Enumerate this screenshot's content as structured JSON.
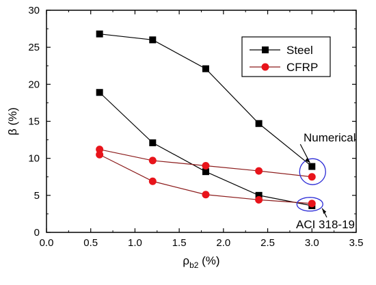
{
  "chart_data": {
    "type": "line",
    "title": "",
    "xlabel": {
      "base": "ρ",
      "sub": "b2",
      "suffix": " (%)"
    },
    "ylabel": "β (%)",
    "xlim": [
      0.0,
      3.5
    ],
    "ylim": [
      0,
      30
    ],
    "x_ticks": [
      "0.0",
      "0.5",
      "1.0",
      "1.5",
      "2.0",
      "2.5",
      "3.0",
      "3.5"
    ],
    "y_ticks": [
      "0",
      "5",
      "10",
      "15",
      "20",
      "25",
      "30"
    ],
    "grid": false,
    "legend_position": "top-right",
    "series": [
      {
        "name": "Steel",
        "group": "Numerical",
        "color": "#000000",
        "line_color": "#000000",
        "marker": "square",
        "x": [
          0.6,
          1.2,
          1.8,
          2.4,
          3.0
        ],
        "y": [
          26.8,
          26.0,
          22.1,
          14.7,
          8.9
        ]
      },
      {
        "name": "Steel",
        "group": "ACI 318-19",
        "color": "#000000",
        "line_color": "#000000",
        "marker": "square",
        "x": [
          0.6,
          1.2,
          1.8,
          2.4,
          3.0
        ],
        "y": [
          18.9,
          12.1,
          8.2,
          5.0,
          3.6
        ]
      },
      {
        "name": "CFRP",
        "group": "Numerical",
        "color": "#e8141b",
        "line_color": "#8b1a1a",
        "marker": "circle",
        "x": [
          0.6,
          1.2,
          1.8,
          2.4,
          3.0
        ],
        "y": [
          11.2,
          9.7,
          9.0,
          8.3,
          7.5
        ]
      },
      {
        "name": "CFRP",
        "group": "ACI 318-19",
        "color": "#e8141b",
        "line_color": "#8b1a1a",
        "marker": "circle",
        "x": [
          0.6,
          1.2,
          1.8,
          2.4,
          3.0
        ],
        "y": [
          10.5,
          6.9,
          5.1,
          4.4,
          3.9
        ]
      }
    ],
    "legend": [
      {
        "label": "Steel",
        "color": "#000000",
        "marker": "square"
      },
      {
        "label": "CFRP",
        "color": "#e8141b",
        "line_color": "#8b1a1a",
        "marker": "circle"
      }
    ],
    "annotations": [
      {
        "text": "Numerical",
        "target_x": 3.0,
        "target_y": 8.2,
        "ellipse_color": "#2b2bd6"
      },
      {
        "text": "ACI 318-19",
        "target_x": 3.0,
        "target_y": 3.8,
        "ellipse_color": "#2b2bd6"
      }
    ]
  }
}
